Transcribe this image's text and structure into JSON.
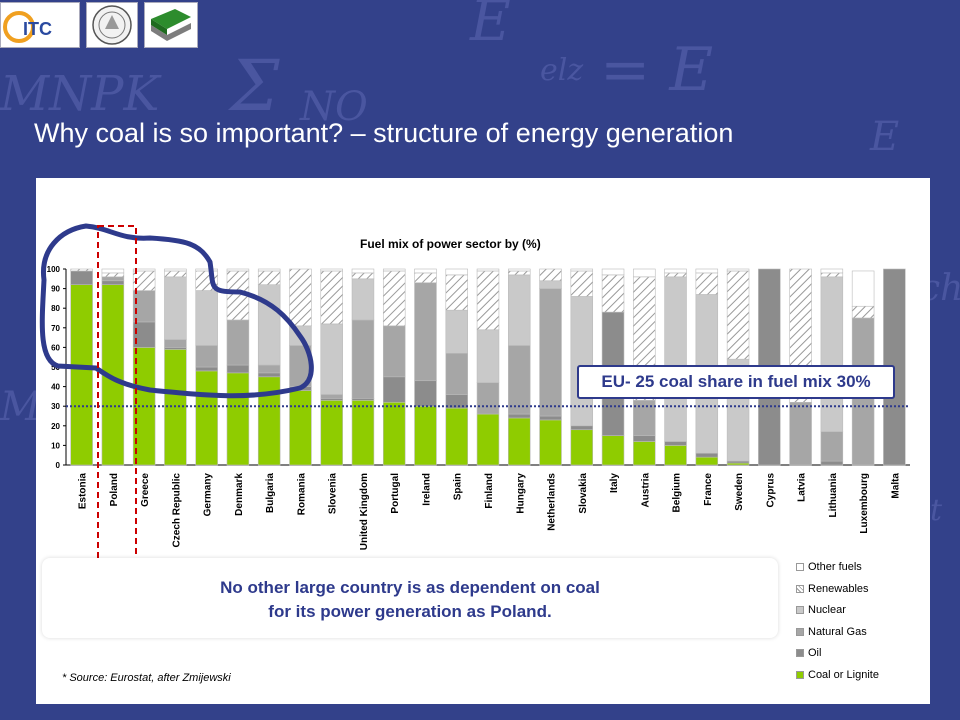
{
  "slide": {
    "title": "Why coal is so important? – structure of energy generation",
    "source": "* Source: Eurostat, after Zmijewski",
    "callout_line1": "No other large country is as dependent on coal",
    "callout_line2": "for its power generation as Poland.",
    "logos": [
      "ITC",
      "",
      ""
    ]
  },
  "colors": {
    "background": "#33418a",
    "accent": "#2e3a8c",
    "highlight_outline": "#2e3a8c",
    "highlight_dashed": "#cc0000"
  },
  "chart_data": {
    "type": "bar",
    "stacked": true,
    "title": "Fuel mix of power sector by  (%)",
    "ylim": [
      0,
      100
    ],
    "yticks": [
      0,
      10,
      20,
      30,
      40,
      50,
      60,
      70,
      80,
      90,
      100
    ],
    "categories": [
      "Estonia",
      "Poland",
      "Greece",
      "Czech Republic",
      "Germany",
      "Denmark",
      "Bulgaria",
      "Romania",
      "Slovenia",
      "United Kingdom",
      "Portugal",
      "Ireland",
      "Spain",
      "Finland",
      "Hungary",
      "Netherlands",
      "Slovakia",
      "Italy",
      "Austria",
      "Belgium",
      "France",
      "Sweden",
      "Cyprus",
      "Latvia",
      "Lithuania",
      "Luxembourg",
      "Malta"
    ],
    "series": [
      {
        "name": "Coal or Lignite",
        "color": "#8fcc00",
        "values": [
          92,
          92,
          60,
          59,
          48,
          47,
          45,
          38,
          33,
          33,
          32,
          30,
          29,
          26,
          24,
          23,
          18,
          15,
          12,
          10,
          4,
          1,
          0,
          0,
          0,
          0,
          0
        ]
      },
      {
        "name": "Oil",
        "color": "#8c8c8c",
        "values": [
          7,
          2,
          13,
          1,
          2,
          4,
          2,
          2,
          1,
          1,
          13,
          13,
          7,
          0,
          2,
          2,
          2,
          63,
          3,
          2,
          2,
          1,
          100,
          0,
          2,
          0,
          100
        ]
      },
      {
        "name": "Natural Gas",
        "color": "#a6a6a6",
        "values": [
          0,
          2,
          16,
          4,
          11,
          23,
          4,
          21,
          2,
          40,
          26,
          50,
          21,
          16,
          35,
          65,
          0,
          0,
          18,
          0,
          0,
          0,
          0,
          32,
          15,
          75,
          0
        ]
      },
      {
        "name": "Nuclear",
        "color": "#c9c9c9",
        "values": [
          0,
          0,
          0,
          32,
          28,
          0,
          41,
          10,
          36,
          21,
          0,
          0,
          22,
          27,
          36,
          4,
          66,
          0,
          0,
          84,
          81,
          52,
          0,
          0,
          79,
          0,
          0
        ]
      },
      {
        "name": "Renewables",
        "color": "hatch",
        "values": [
          1,
          2,
          10,
          3,
          10,
          25,
          7,
          29,
          27,
          3,
          28,
          5,
          18,
          30,
          2,
          6,
          13,
          19,
          63,
          2,
          11,
          45,
          0,
          68,
          2,
          6,
          0
        ]
      },
      {
        "name": "Other fuels",
        "color": "#ffffff",
        "values": [
          0,
          2,
          1,
          1,
          1,
          1,
          1,
          0,
          1,
          2,
          1,
          2,
          3,
          1,
          1,
          0,
          1,
          3,
          4,
          2,
          2,
          1,
          0,
          0,
          2,
          18,
          0
        ]
      }
    ],
    "reference_line": {
      "value": 30,
      "label": "EU- 25 coal share in fuel mix 30%"
    },
    "legend": [
      "Other fuels",
      "Renewables",
      "Nuclear",
      "Natural Gas",
      "Oil",
      "Coal or Lignite"
    ],
    "legend_position": "right",
    "grid": false
  }
}
